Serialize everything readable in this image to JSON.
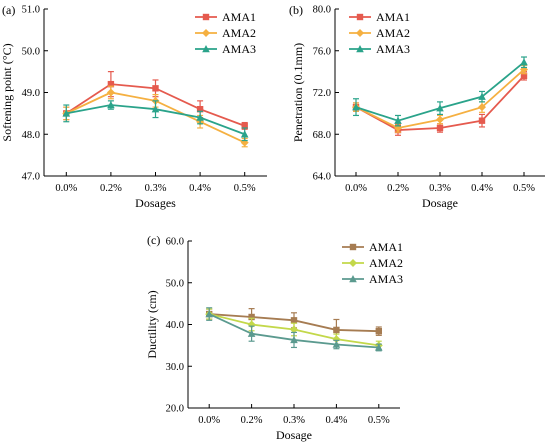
{
  "chart_data": [
    {
      "type": "line",
      "panel_label": "(a)",
      "xlabel": "Dosages",
      "ylabel": "Softening point (°C)",
      "categories": [
        "0.0%",
        "0.2%",
        "0.3%",
        "0.4%",
        "0.5%"
      ],
      "ylim": [
        47.0,
        51.0
      ],
      "yticks": [
        "47.0",
        "48.0",
        "49.0",
        "50.0",
        "51.0"
      ],
      "legend_position": "top-right",
      "grid": false,
      "series": [
        {
          "name": "AMA1",
          "color": "#e55a4e",
          "marker": "square",
          "values": [
            48.5,
            49.2,
            49.1,
            48.6,
            48.2
          ],
          "errors": [
            0.15,
            0.3,
            0.2,
            0.2,
            0.08
          ]
        },
        {
          "name": "AMA2",
          "color": "#f5b041",
          "marker": "diamond",
          "values": [
            48.5,
            49.0,
            48.8,
            48.3,
            47.8
          ],
          "errors": [
            0.15,
            0.15,
            0.15,
            0.15,
            0.1
          ]
        },
        {
          "name": "AMA3",
          "color": "#2aa38a",
          "marker": "triangle",
          "values": [
            48.5,
            48.7,
            48.6,
            48.4,
            48.0
          ],
          "errors": [
            0.2,
            0.1,
            0.2,
            0.15,
            0.15
          ]
        }
      ]
    },
    {
      "type": "line",
      "panel_label": "(b)",
      "xlabel": "Dosage",
      "ylabel": "Penetration (0.1mm)",
      "categories": [
        "0.0%",
        "0.2%",
        "0.3%",
        "0.4%",
        "0.5%"
      ],
      "ylim": [
        64.0,
        80.0
      ],
      "yticks": [
        "64.0",
        "68.0",
        "72.0",
        "76.0",
        "80.0"
      ],
      "legend_position": "top-left",
      "grid": false,
      "series": [
        {
          "name": "AMA1",
          "color": "#e55a4e",
          "marker": "square",
          "values": [
            70.6,
            68.4,
            68.6,
            69.3,
            73.6
          ],
          "errors": [
            0.4,
            0.5,
            0.4,
            0.6,
            0.4
          ]
        },
        {
          "name": "AMA2",
          "color": "#f5b041",
          "marker": "diamond",
          "values": [
            70.6,
            68.6,
            69.4,
            70.6,
            74.2
          ],
          "errors": [
            0.4,
            0.4,
            0.4,
            0.5,
            0.4
          ]
        },
        {
          "name": "AMA3",
          "color": "#2aa38a",
          "marker": "triangle",
          "values": [
            70.6,
            69.3,
            70.5,
            71.6,
            74.9
          ],
          "errors": [
            0.8,
            0.5,
            0.6,
            0.5,
            0.5
          ]
        }
      ]
    },
    {
      "type": "line",
      "panel_label": "(c)",
      "xlabel": "Dosage",
      "ylabel": "Ductility (cm)",
      "categories": [
        "0.0%",
        "0.2%",
        "0.3%",
        "0.4%",
        "0.5%"
      ],
      "ylim": [
        20.0,
        60.0
      ],
      "yticks": [
        "20.0",
        "30.0",
        "40.0",
        "50.0",
        "60.0"
      ],
      "legend_position": "top-right",
      "grid": false,
      "series": [
        {
          "name": "AMA1",
          "color": "#a67c52",
          "marker": "square",
          "values": [
            42.5,
            41.8,
            41.0,
            38.7,
            38.4
          ],
          "errors": [
            1.2,
            2.0,
            1.8,
            2.5,
            1.0
          ]
        },
        {
          "name": "AMA2",
          "color": "#c3d84a",
          "marker": "diamond",
          "values": [
            42.5,
            40.0,
            38.8,
            36.5,
            35.0
          ],
          "errors": [
            1.2,
            1.5,
            1.5,
            1.2,
            1.0
          ]
        },
        {
          "name": "AMA3",
          "color": "#5b9a8f",
          "marker": "triangle",
          "values": [
            42.5,
            37.8,
            36.3,
            35.2,
            34.5
          ],
          "errors": [
            1.5,
            1.8,
            1.8,
            1.0,
            0.8
          ]
        }
      ]
    }
  ]
}
